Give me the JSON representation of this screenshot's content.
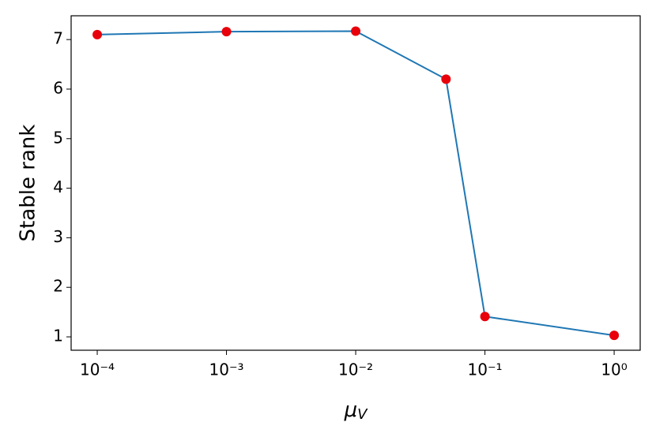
{
  "chart_data": {
    "type": "line",
    "y_label": "Stable rank",
    "x_label": {
      "symbol": "μ",
      "subscript": "V"
    },
    "x": [
      0.0001,
      0.001,
      0.01,
      0.05,
      0.1,
      1
    ],
    "series": [
      {
        "values": [
          7.1,
          7.16,
          7.17,
          6.2,
          1.41,
          1.03
        ],
        "color": "#1f77b4",
        "marker_color": "#e8000b"
      }
    ],
    "xscale": "log",
    "xlim": [
      6.28e-05,
      1.59
    ],
    "xticks": [
      {
        "value": 0.0001,
        "label": "10⁻⁴"
      },
      {
        "value": 0.001,
        "label": "10⁻³"
      },
      {
        "value": 0.01,
        "label": "10⁻²"
      },
      {
        "value": 0.1,
        "label": "10⁻¹"
      },
      {
        "value": 1,
        "label": "10⁰"
      }
    ],
    "ylim": [
      0.73,
      7.48
    ],
    "yticks": [
      1,
      2,
      3,
      4,
      5,
      6,
      7
    ]
  }
}
